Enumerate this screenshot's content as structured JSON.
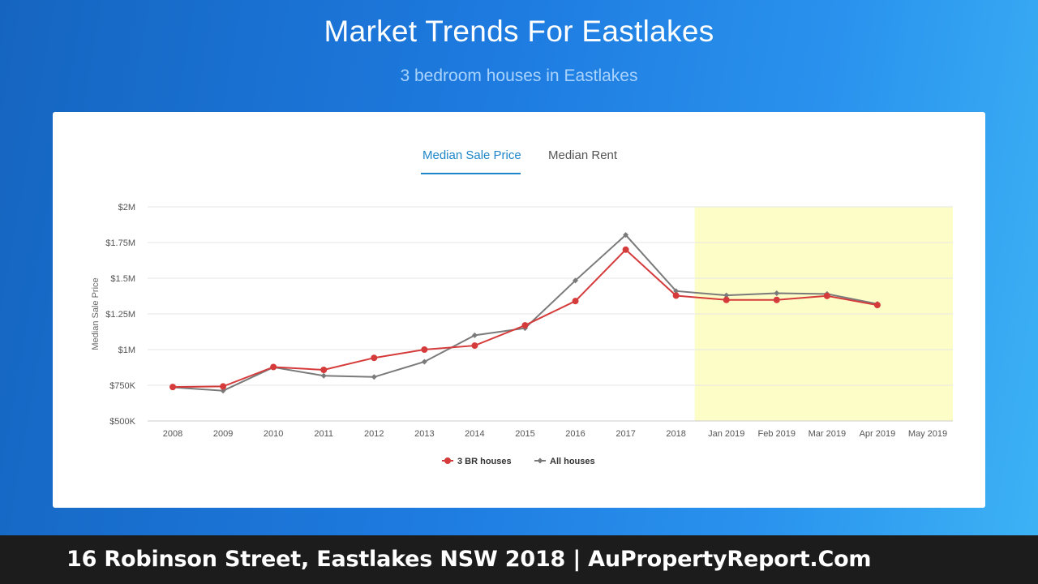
{
  "header": {
    "title": "Market Trends For Eastlakes",
    "subtitle": "3 bedroom houses in Eastlakes"
  },
  "tabs": [
    {
      "label": "Median Sale Price",
      "active": true
    },
    {
      "label": "Median Rent",
      "active": false
    }
  ],
  "footer": {
    "text": "16 Robinson Street, Eastlakes NSW 2018 | AuPropertyReport.Com"
  },
  "chart_data": {
    "type": "line",
    "ylabel": "Median Sale Price",
    "categories": [
      "2008",
      "2009",
      "2010",
      "2011",
      "2012",
      "2013",
      "2014",
      "2015",
      "2016",
      "2017",
      "2018",
      "Jan 2019",
      "Feb 2019",
      "Mar 2019",
      "Apr 2019",
      "May 2019"
    ],
    "y_ticks": [
      {
        "value": 500000,
        "label": "$500K"
      },
      {
        "value": 750000,
        "label": "$750K"
      },
      {
        "value": 1000000,
        "label": "$1M"
      },
      {
        "value": 1250000,
        "label": "$1.25M"
      },
      {
        "value": 1500000,
        "label": "$1.5M"
      },
      {
        "value": 1750000,
        "label": "$1.75M"
      },
      {
        "value": 2000000,
        "label": "$2M"
      }
    ],
    "ylim": [
      500000,
      2000000
    ],
    "highlight_range": {
      "from": "Jan 2019",
      "to": "May 2019",
      "color": "#fdfdc8"
    },
    "legend_position": "bottom",
    "series": [
      {
        "name": "3 BR houses",
        "color": "#d63b3b",
        "marker": "circle",
        "values": [
          738000,
          742000,
          878000,
          858000,
          942000,
          1000000,
          1028000,
          1170000,
          1340000,
          1700000,
          1378000,
          1348000,
          1348000,
          1376000,
          1312000,
          null
        ]
      },
      {
        "name": "All houses",
        "color": "#7a7a7a",
        "marker": "diamond",
        "values": [
          736000,
          712000,
          876000,
          817000,
          808000,
          915000,
          1100000,
          1150000,
          1484000,
          1803000,
          1410000,
          1380000,
          1395000,
          1390000,
          1320000,
          null
        ]
      }
    ]
  }
}
